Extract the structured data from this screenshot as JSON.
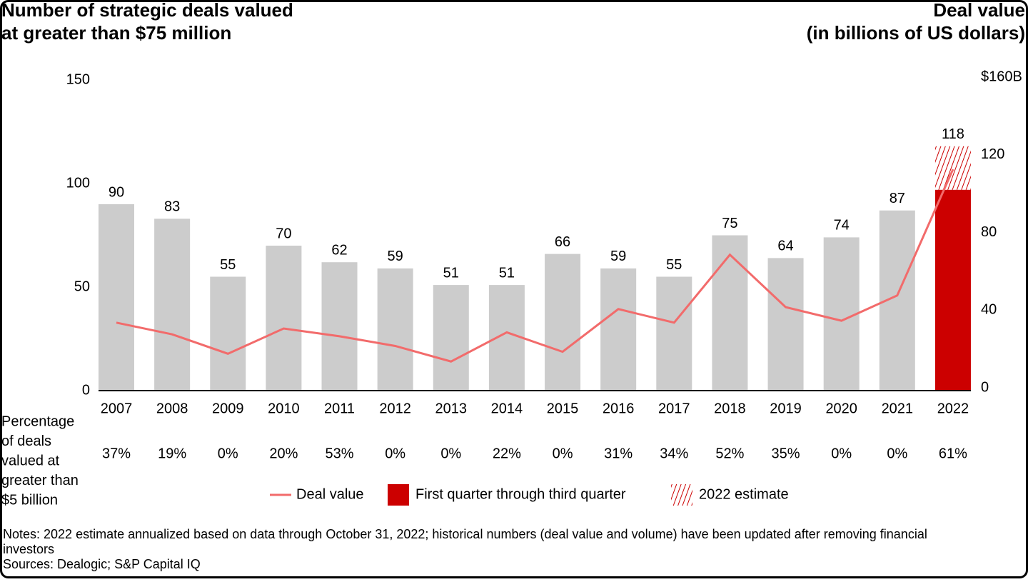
{
  "chart_data": {
    "type": "bar",
    "y_label": [
      "Number of strategic deals valued",
      "at greater than $75 million"
    ],
    "y2_label": [
      "Deal value",
      "(in billions of US dollars)"
    ],
    "categories": [
      "2007",
      "2008",
      "2009",
      "2010",
      "2011",
      "2012",
      "2013",
      "2014",
      "2015",
      "2016",
      "2017",
      "2018",
      "2019",
      "2020",
      "2021",
      "2022"
    ],
    "series": [
      {
        "type": "bar",
        "color": "#cccccc",
        "values": [
          90,
          83,
          55,
          70,
          62,
          59,
          51,
          51,
          66,
          59,
          55,
          75,
          64,
          74,
          87,
          null
        ]
      },
      {
        "type": "line",
        "name": "Deal value",
        "color": "#f26b6b",
        "axis": "y2",
        "values": [
          35,
          29,
          19,
          32,
          28,
          23,
          15,
          30,
          20,
          42,
          35,
          70,
          43,
          36,
          49,
          114
        ]
      },
      {
        "type": "bar",
        "name": "First quarter through third quarter",
        "color": "#cc0000",
        "values": [
          null,
          null,
          null,
          null,
          null,
          null,
          null,
          null,
          null,
          null,
          null,
          null,
          null,
          null,
          null,
          97
        ]
      },
      {
        "type": "bar",
        "name": "2022 estimate",
        "color": "#cc0000",
        "hatch": true,
        "values": [
          null,
          null,
          null,
          null,
          null,
          null,
          null,
          null,
          null,
          null,
          null,
          null,
          null,
          null,
          null,
          21
        ]
      }
    ],
    "totals": [
      90,
      83,
      55,
      70,
      62,
      59,
      51,
      51,
      66,
      59,
      55,
      75,
      64,
      74,
      87,
      118
    ],
    "ylim": [
      0,
      150
    ],
    "yticks": [
      0,
      50,
      100,
      150
    ],
    "y2lim": [
      0,
      160
    ],
    "y2ticks": [
      0,
      40,
      80,
      120,
      {
        "value": 160,
        "label": "$160B"
      }
    ],
    "row_label": [
      "Percentage",
      "of deals",
      "valued at",
      "greater than",
      "$5 billion"
    ],
    "row_values": [
      "37%",
      "19%",
      "0%",
      "20%",
      "53%",
      "0%",
      "0%",
      "22%",
      "0%",
      "31%",
      "34%",
      "52%",
      "35%",
      "0%",
      "0%",
      "61%"
    ],
    "notes": "Notes: 2022 estimate annualized based on data through October 31, 2022; historical numbers (deal value and volume) have been updated after removing financial investors",
    "sources": "Sources: Dealogic; S&P Capital IQ"
  }
}
